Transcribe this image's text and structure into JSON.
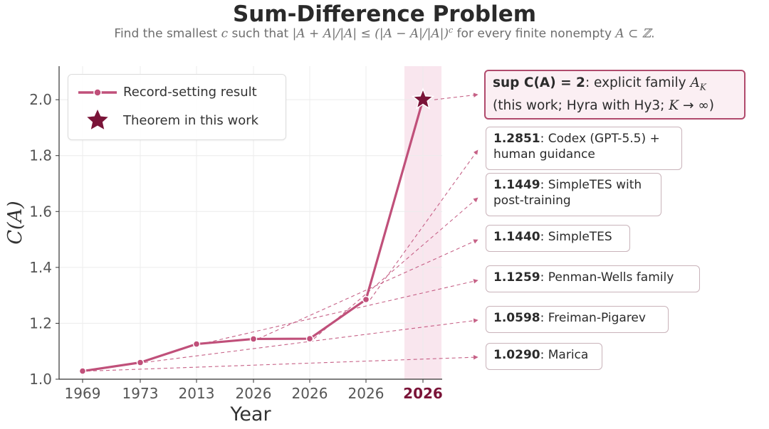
{
  "title": "Sum-Difference Problem",
  "subtitle": {
    "pre": "Find the smallest ",
    "var": "c",
    "mid1": " such that ",
    "formula": "|A + A|/|A| ≤ (|A − A|/|A|)",
    "exp": "c",
    "mid2": " for every finite nonempty ",
    "set": "A ⊂ ℤ",
    "end": "."
  },
  "colors": {
    "line": "#c0507a",
    "star": "#7a1438",
    "highlight_band": "#f9e6ee",
    "grid": "#ececec",
    "arrow": "#c0507a"
  },
  "chart_data": {
    "type": "line",
    "xlabel": "Year",
    "ylabel": "C(A)",
    "ylim": [
      1.0,
      2.12
    ],
    "yticks": [
      1.0,
      1.2,
      1.4,
      1.6,
      1.8,
      2.0
    ],
    "ytick_labels": [
      "1.0",
      "1.2",
      "1.4",
      "1.6",
      "1.8",
      "2.0"
    ],
    "categories": [
      "1969",
      "1973",
      "2013",
      "2026",
      "2026",
      "2026",
      "2026"
    ],
    "highlight_category_index": 6,
    "grid": true,
    "legend_position": "top-left",
    "series": [
      {
        "name": "Record-setting result",
        "values": [
          1.029,
          1.0598,
          1.1259,
          1.144,
          1.1449,
          1.2851,
          2.0
        ]
      }
    ],
    "theorem_point": {
      "name": "Theorem in this work",
      "category_index": 6,
      "value": 2.0
    },
    "annotations": [
      {
        "value": "sup C(A) = 2",
        "text": ": explicit family ",
        "math": "A",
        "sub": "K",
        "line2": "(this work; Hyra with Hy3; ",
        "math2": "K",
        "arrow_txt": " → ∞)",
        "highlight": true,
        "point_index": 6
      },
      {
        "value": "1.2851",
        "text": ": Codex (GPT-5.5) +",
        "line2": "human guidance",
        "point_index": 5
      },
      {
        "value": "1.1449",
        "text": ": SimpleTES with",
        "line2": "post-training",
        "point_index": 4
      },
      {
        "value": "1.1440",
        "text": ": SimpleTES",
        "point_index": 3
      },
      {
        "value": "1.1259",
        "text": ": Penman-Wells family",
        "point_index": 2
      },
      {
        "value": "1.0598",
        "text": ": Freiman-Pigarev",
        "point_index": 1
      },
      {
        "value": "1.0290",
        "text": ": Marica",
        "point_index": 0
      }
    ]
  }
}
